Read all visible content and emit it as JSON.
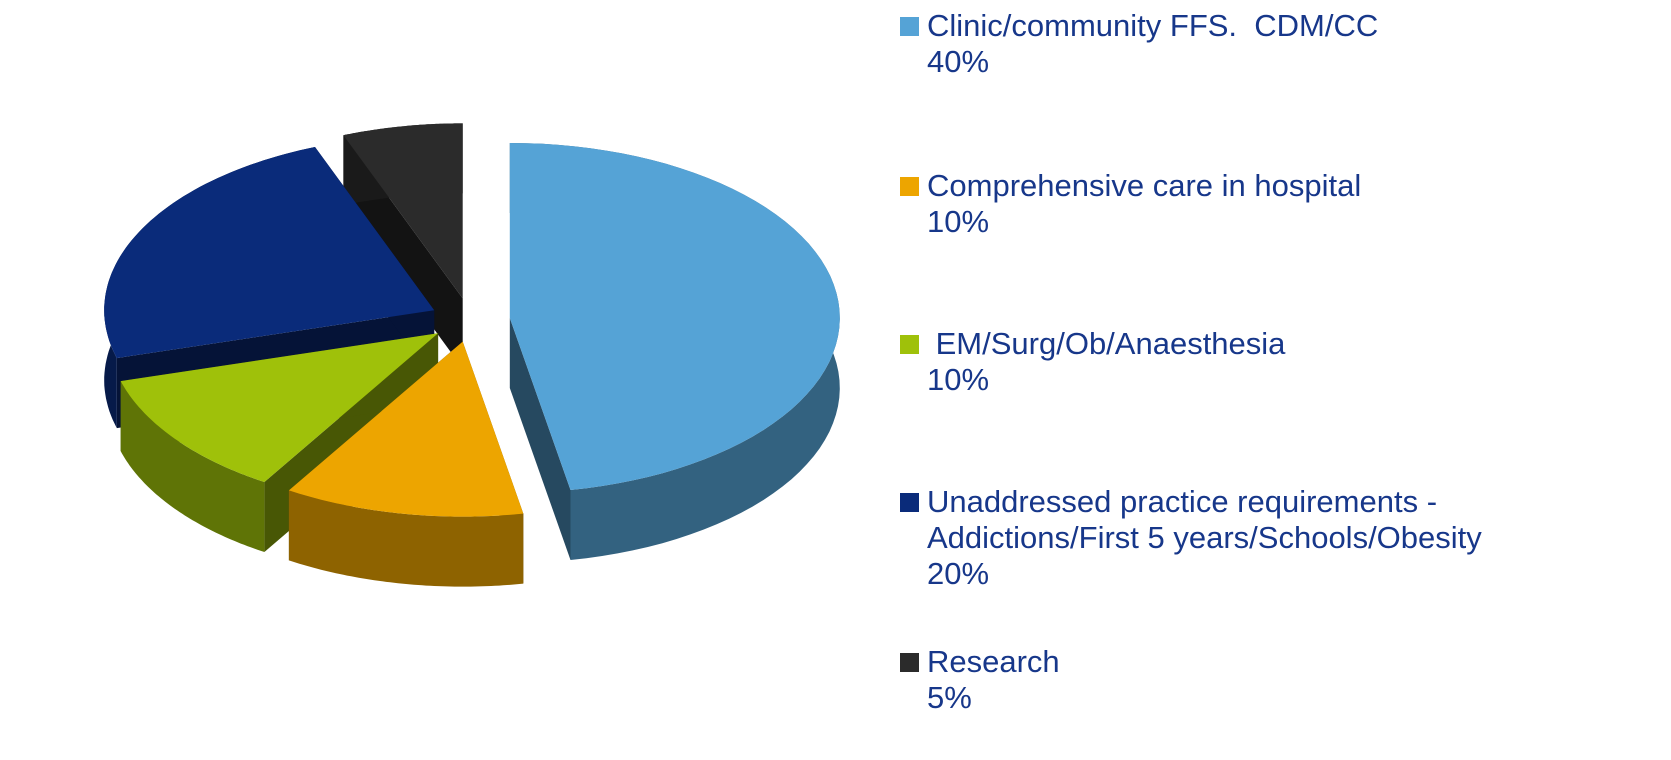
{
  "chart_data": {
    "type": "pie",
    "categories": [
      "Clinic/community FFS.  CDM/CC",
      "Comprehensive care in hospital",
      " EM/Surg/Ob/Anaesthesia",
      "Unaddressed practice requirements - Addictions/First 5 years/Schools/Obesity",
      "Research"
    ],
    "values": [
      40,
      10,
      10,
      20,
      5
    ],
    "value_labels": [
      "40%",
      "10%",
      "10%",
      "20%",
      "5%"
    ],
    "colors": [
      "#55a3d6",
      "#eda500",
      "#9fc10a",
      "#0a2b7a",
      "#2b2b2b"
    ],
    "legend": "right"
  }
}
